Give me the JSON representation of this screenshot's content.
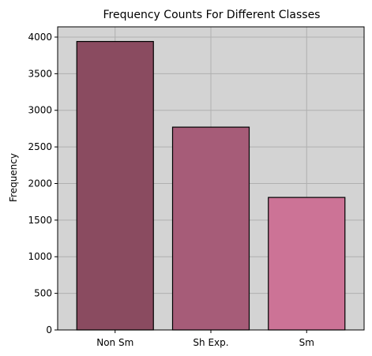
{
  "chart_data": {
    "type": "bar",
    "title": "Frequency Counts For Different Classes",
    "xlabel": "",
    "ylabel": "Frequency",
    "categories": [
      "Non Sm",
      "Sh Exp.",
      "Sm"
    ],
    "values": [
      3940,
      2770,
      1810
    ],
    "bar_colors": [
      "#8a4b60",
      "#a65c78",
      "#cc7396"
    ],
    "ylim": [
      0,
      4140
    ],
    "yticks": [
      0,
      500,
      1000,
      1500,
      2000,
      2500,
      3000,
      3500,
      4000
    ],
    "grid": true,
    "plot_background": "#d3d3d3",
    "grid_color": "#b0b0b0",
    "bar_edge_color": "#000000"
  }
}
